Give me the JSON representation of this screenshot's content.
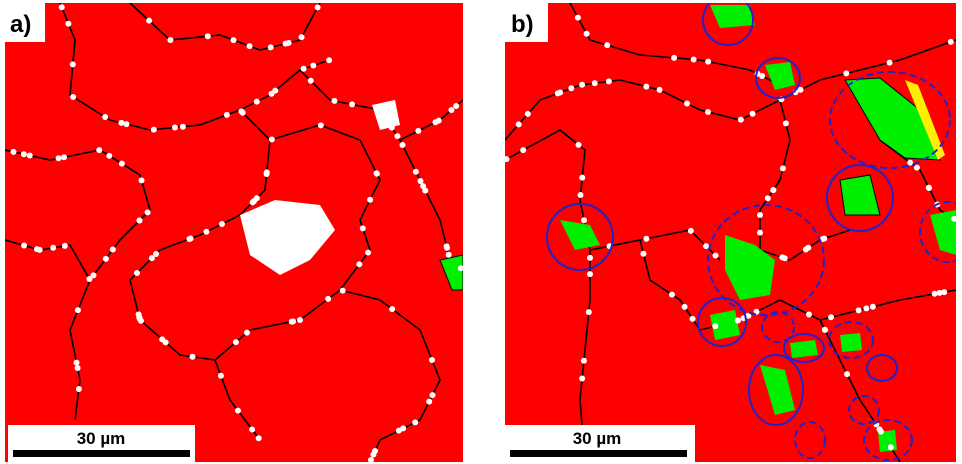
{
  "panels": [
    {
      "label": "a)",
      "scale_bar": "30 µm"
    },
    {
      "label": "b)",
      "scale_bar": "30 µm"
    }
  ]
}
